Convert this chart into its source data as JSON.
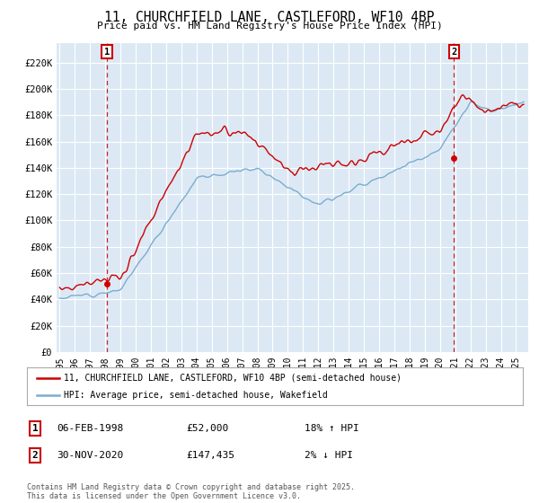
{
  "title": "11, CHURCHFIELD LANE, CASTLEFORD, WF10 4BP",
  "subtitle": "Price paid vs. HM Land Registry's House Price Index (HPI)",
  "background_color": "#ffffff",
  "plot_background": "#dce9f5",
  "grid_color": "#ffffff",
  "yticks": [
    0,
    20000,
    40000,
    60000,
    80000,
    100000,
    120000,
    140000,
    160000,
    180000,
    200000,
    220000
  ],
  "ytick_labels": [
    "£0",
    "£20K",
    "£40K",
    "£60K",
    "£80K",
    "£100K",
    "£120K",
    "£140K",
    "£160K",
    "£180K",
    "£200K",
    "£220K"
  ],
  "ylim": [
    0,
    235000
  ],
  "legend_entries": [
    "11, CHURCHFIELD LANE, CASTLEFORD, WF10 4BP (semi-detached house)",
    "HPI: Average price, semi-detached house, Wakefield"
  ],
  "legend_colors": [
    "#cc0000",
    "#7aadcf"
  ],
  "sale1_label": "1",
  "sale1_date": "06-FEB-1998",
  "sale1_price": "£52,000",
  "sale1_hpi": "18% ↑ HPI",
  "sale1_x": 1998.1,
  "sale1_y": 52000,
  "sale2_label": "2",
  "sale2_date": "30-NOV-2020",
  "sale2_price": "£147,435",
  "sale2_hpi": "2% ↓ HPI",
  "sale2_x": 2020.92,
  "sale2_y": 147435,
  "footnote": "Contains HM Land Registry data © Crown copyright and database right 2025.\nThis data is licensed under the Open Government Licence v3.0.",
  "hpi_line_color": "#7aadcf",
  "price_line_color": "#cc0000",
  "vline_color": "#cc0000",
  "xlim_left": 1994.8,
  "xlim_right": 2025.8
}
